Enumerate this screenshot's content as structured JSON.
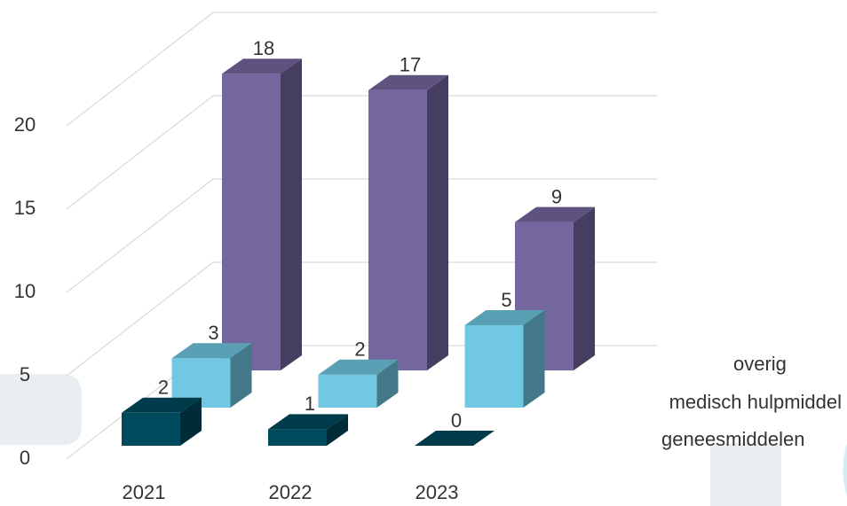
{
  "chart_data": {
    "type": "bar",
    "categories": [
      "2021",
      "2022",
      "2023"
    ],
    "series": [
      {
        "name": "geneesmiddelen",
        "color": "#004a5e",
        "values": [
          2,
          1,
          0
        ]
      },
      {
        "name": "medisch hulpmiddel",
        "color": "#70c8e2",
        "values": [
          3,
          2,
          5
        ]
      },
      {
        "name": "overig",
        "color": "#7467a0",
        "values": [
          18,
          17,
          9
        ]
      }
    ],
    "ylim": [
      0,
      20
    ],
    "yticks": [
      0,
      5,
      10,
      15,
      20
    ],
    "grid": true
  }
}
